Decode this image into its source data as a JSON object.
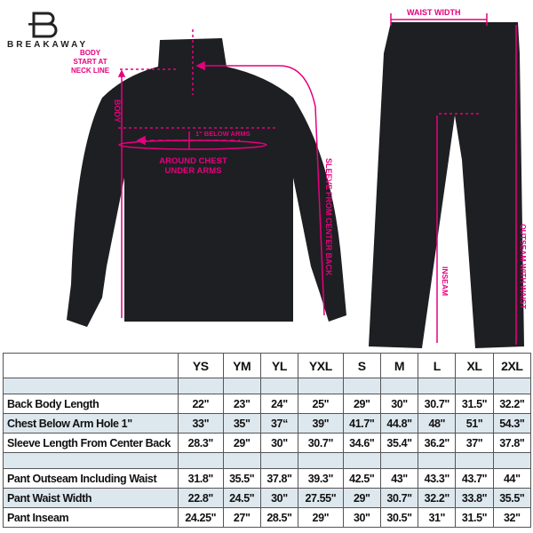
{
  "brand": {
    "name": "BREAKAWAY",
    "logo_letter": "B"
  },
  "colors": {
    "annotation": "#e6007e",
    "garment": "#1e1f22",
    "table_shade": "#dde7ee"
  },
  "annotations": {
    "body_start": [
      "BODY",
      "START AT",
      "NECK LINE"
    ],
    "body": "BODY",
    "below_arms": "1\" BELOW ARMS",
    "chest": [
      "AROUND CHEST",
      "UNDER ARMS"
    ],
    "sleeve": "SLEEVE FROM CENTER BACK",
    "waist_width": "WAIST WIDTH",
    "inseam": "INSEAM",
    "outseam": "OUTSEAM WITH WAIST"
  },
  "table": {
    "sizes": [
      "YS",
      "YM",
      "YL",
      "YXL",
      "S",
      "M",
      "L",
      "XL",
      "2XL"
    ],
    "jacket_rows": [
      {
        "label": "Back Body Length",
        "values": [
          "22\"",
          "23\"",
          "24\"",
          "25\"",
          "29\"",
          "30\"",
          "30.7\"",
          "31.5\"",
          "32.2\""
        ]
      },
      {
        "label": "Chest Below Arm Hole 1\"",
        "values": [
          "33\"",
          "35\"",
          "37“",
          "39\"",
          "41.7\"",
          "44.8\"",
          "48\"",
          "51\"",
          "54.3\""
        ]
      },
      {
        "label": "Sleeve Length From Center Back",
        "values": [
          "28.3\"",
          "29\"",
          "30\"",
          "30.7\"",
          "34.6\"",
          "35.4\"",
          "36.2\"",
          "37\"",
          "37.8\""
        ]
      }
    ],
    "pant_rows": [
      {
        "label": "Pant Outseam Including Waist",
        "values": [
          "31.8\"",
          "35.5\"",
          "37.8\"",
          "39.3\"",
          "42.5\"",
          "43\"",
          "43.3\"",
          "43.7\"",
          "44\""
        ]
      },
      {
        "label": "Pant Waist Width",
        "values": [
          "22.8\"",
          "24.5\"",
          "30\"",
          "27.55\"",
          "29\"",
          "30.7\"",
          "32.2\"",
          "33.8\"",
          "35.5\""
        ]
      },
      {
        "label": "Pant Inseam",
        "values": [
          "24.25\"",
          "27\"",
          "28.5\"",
          "29\"",
          "30\"",
          "30.5\"",
          "31\"",
          "31.5\"",
          "32\""
        ]
      }
    ]
  }
}
